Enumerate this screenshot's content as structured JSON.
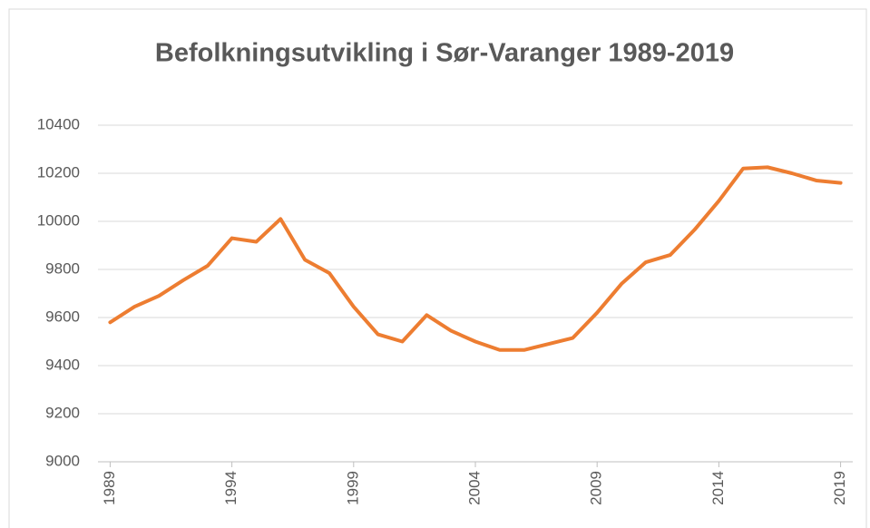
{
  "chart_data": {
    "type": "line",
    "title": "Befolkningsutvikling i Sør-Varanger 1989-2019",
    "categories": [
      "1989",
      null,
      null,
      null,
      null,
      "1994",
      null,
      null,
      null,
      null,
      "1999",
      null,
      null,
      null,
      null,
      "2004",
      null,
      null,
      null,
      null,
      "2009",
      null,
      null,
      null,
      null,
      "2014",
      null,
      null,
      null,
      null,
      "2019"
    ],
    "series": [
      {
        "name": "Sør-Varanger",
        "color": "#ed7d31",
        "values": [
          9580,
          9645,
          9690,
          9755,
          9815,
          9930,
          9915,
          10010,
          9840,
          9785,
          9645,
          9530,
          9500,
          9610,
          9545,
          9500,
          9465,
          9465,
          9490,
          9515,
          9620,
          9740,
          9830,
          9860,
          9965,
          10085,
          10220,
          10225,
          10200,
          10170,
          10160
        ]
      }
    ],
    "ylim": [
      9000,
      10400
    ],
    "yticks": [
      9000,
      9200,
      9400,
      9600,
      9800,
      10000,
      10200,
      10400
    ],
    "grid": true
  }
}
